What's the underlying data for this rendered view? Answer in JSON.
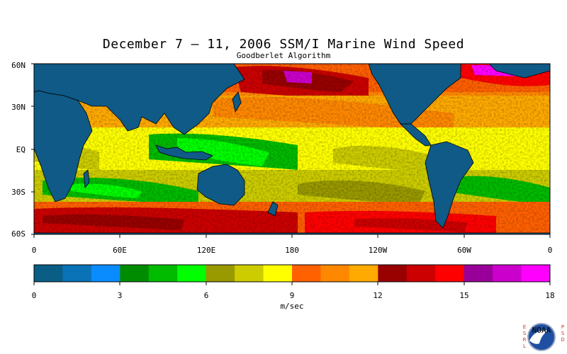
{
  "title": "December 7 – 11, 2006 SSM/I Marine Wind Speed",
  "subtitle": "Goodberlet Algorithm",
  "lat_labels": [
    "60N",
    "30N",
    "EQ",
    "30S",
    "60S"
  ],
  "lon_labels": [
    "0",
    "60E",
    "120E",
    "180",
    "120W",
    "60W",
    "0"
  ],
  "colorbar": {
    "unit": "m/sec",
    "ticks": [
      "0",
      "3",
      "6",
      "9",
      "12",
      "15",
      "18"
    ],
    "colors": [
      "#0a5e86",
      "#0a72b6",
      "#0a8cff",
      "#008c00",
      "#00bb00",
      "#00ff00",
      "#999900",
      "#cccc00",
      "#ffff00",
      "#ff6000",
      "#ff8800",
      "#ffaa00",
      "#990000",
      "#cc0000",
      "#ff0000",
      "#990099",
      "#cc00cc",
      "#ff00ff"
    ]
  },
  "logo": {
    "esrl": "E S R L",
    "psd": "P S D",
    "center": "NOAA"
  },
  "map": {
    "land_color": "#0f5a86",
    "coast_color": "#000000"
  }
}
